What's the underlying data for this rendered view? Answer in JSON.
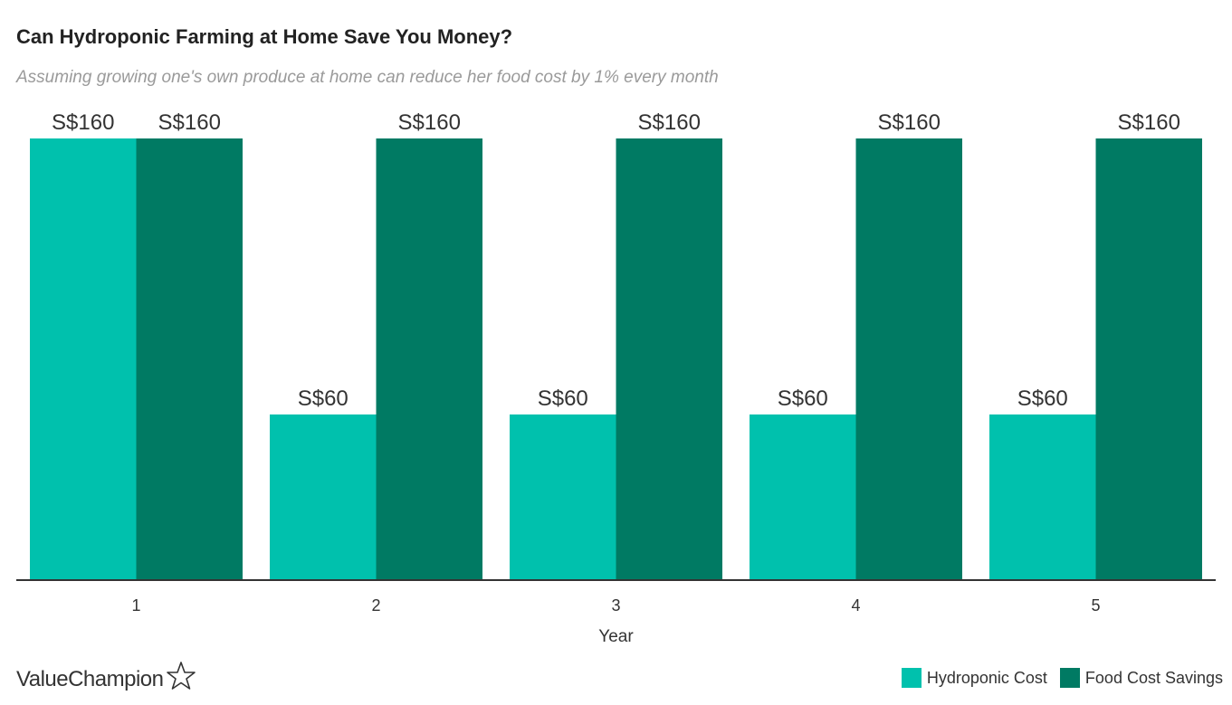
{
  "chart_data": {
    "type": "bar",
    "title": "Can Hydroponic Farming at Home Save You Money?",
    "subtitle": "Assuming growing one's own produce at home can reduce her food cost by 1% every month",
    "xlabel": "Year",
    "ylabel": "",
    "categories": [
      "1",
      "2",
      "3",
      "4",
      "5"
    ],
    "series": [
      {
        "name": "Hydroponic Cost",
        "color": "#00c1ad",
        "values": [
          160,
          60,
          60,
          60,
          60
        ],
        "labels": [
          "S$160",
          "S$60",
          "S$60",
          "S$60",
          "S$60"
        ]
      },
      {
        "name": "Food Cost Savings",
        "color": "#007a63",
        "values": [
          160,
          160,
          160,
          160,
          160
        ],
        "labels": [
          "S$160",
          "S$160",
          "S$160",
          "S$160",
          "S$160"
        ]
      }
    ],
    "ylim": [
      0,
      160
    ],
    "grid": false,
    "legend_position": "bottom-right"
  },
  "brand": {
    "name": "ValueChampion",
    "icon": "star-outline-icon"
  }
}
